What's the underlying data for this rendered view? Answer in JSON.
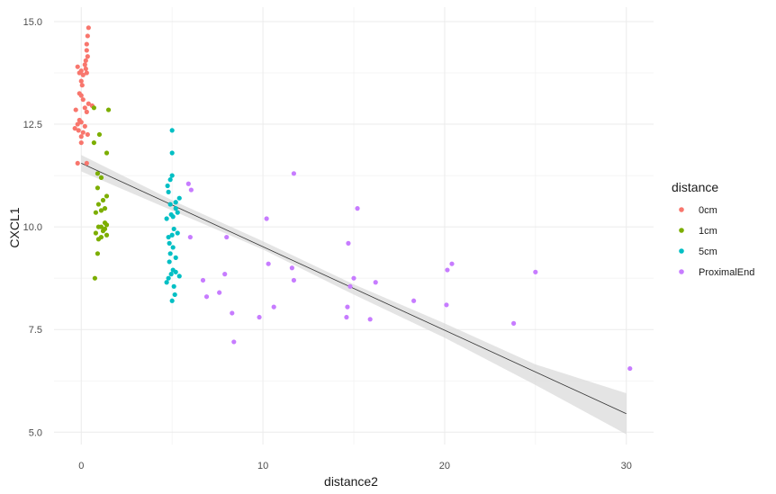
{
  "chart_data": {
    "type": "scatter",
    "title": "",
    "xlabel": "distance2",
    "ylabel": "CXCL1",
    "xlim": [
      -1.5,
      31.5
    ],
    "ylim": [
      4.7,
      15.35
    ],
    "x_ticks": [
      0,
      10,
      20,
      30
    ],
    "x_tick_labels": [
      "0",
      "10",
      "20",
      "30"
    ],
    "y_ticks": [
      5.0,
      7.5,
      10.0,
      12.5,
      15.0
    ],
    "y_tick_labels": [
      "5.0",
      "7.5",
      "10.0",
      "12.5",
      "15.0"
    ],
    "grid": true,
    "legend": {
      "title": "distance",
      "position": "right",
      "entries": [
        {
          "label": "0cm",
          "color": "#F8766D"
        },
        {
          "label": "1cm",
          "color": "#7CAE00"
        },
        {
          "label": "5cm",
          "color": "#00BFC4"
        },
        {
          "label": "ProximalEnd",
          "color": "#C77CFF"
        }
      ]
    },
    "trend": {
      "type": "linear",
      "color": "#333333",
      "band_color": "#d9d9d9",
      "line": [
        [
          0,
          11.55
        ],
        [
          30,
          5.45
        ]
      ],
      "band": [
        {
          "x": 0,
          "low": 11.35,
          "high": 11.75
        },
        {
          "x": 5,
          "low": 10.4,
          "high": 10.65
        },
        {
          "x": 10,
          "low": 9.45,
          "high": 9.65
        },
        {
          "x": 15,
          "low": 8.35,
          "high": 8.6
        },
        {
          "x": 20,
          "low": 7.3,
          "high": 7.65
        },
        {
          "x": 25,
          "low": 6.15,
          "high": 6.65
        },
        {
          "x": 30,
          "low": 4.95,
          "high": 5.95
        }
      ]
    },
    "series": [
      {
        "name": "0cm",
        "color": "#F8766D",
        "points": [
          [
            0.4,
            14.85
          ],
          [
            0.35,
            14.65
          ],
          [
            0.3,
            14.45
          ],
          [
            0.3,
            14.3
          ],
          [
            0.35,
            14.15
          ],
          [
            0.25,
            14.05
          ],
          [
            0.2,
            13.95
          ],
          [
            -0.2,
            13.9
          ],
          [
            0.25,
            13.85
          ],
          [
            0.0,
            13.8
          ],
          [
            -0.1,
            13.75
          ],
          [
            0.3,
            13.75
          ],
          [
            0.1,
            13.7
          ],
          [
            0.0,
            13.55
          ],
          [
            0.05,
            13.45
          ],
          [
            -0.1,
            13.25
          ],
          [
            0.0,
            13.2
          ],
          [
            0.1,
            13.1
          ],
          [
            0.4,
            13.0
          ],
          [
            0.6,
            12.95
          ],
          [
            0.2,
            12.9
          ],
          [
            -0.3,
            12.85
          ],
          [
            0.3,
            12.8
          ],
          [
            -0.1,
            12.6
          ],
          [
            0.0,
            12.55
          ],
          [
            -0.2,
            12.5
          ],
          [
            0.2,
            12.45
          ],
          [
            -0.35,
            12.4
          ],
          [
            -0.15,
            12.35
          ],
          [
            0.1,
            12.3
          ],
          [
            0.35,
            12.25
          ],
          [
            0.0,
            12.2
          ],
          [
            0.0,
            12.05
          ],
          [
            0.3,
            11.55
          ],
          [
            -0.2,
            11.55
          ]
        ]
      },
      {
        "name": "1cm",
        "color": "#7CAE00",
        "points": [
          [
            1.5,
            12.85
          ],
          [
            0.7,
            12.9
          ],
          [
            1.0,
            12.25
          ],
          [
            0.7,
            12.05
          ],
          [
            1.4,
            11.8
          ],
          [
            0.9,
            11.3
          ],
          [
            1.1,
            11.2
          ],
          [
            0.9,
            10.95
          ],
          [
            1.4,
            10.75
          ],
          [
            1.2,
            10.65
          ],
          [
            0.95,
            10.55
          ],
          [
            1.3,
            10.45
          ],
          [
            0.8,
            10.35
          ],
          [
            1.1,
            10.4
          ],
          [
            1.3,
            10.1
          ],
          [
            1.4,
            10.05
          ],
          [
            0.95,
            10.0
          ],
          [
            1.1,
            10.0
          ],
          [
            1.3,
            9.95
          ],
          [
            1.2,
            9.9
          ],
          [
            0.8,
            9.85
          ],
          [
            1.4,
            9.8
          ],
          [
            1.1,
            9.75
          ],
          [
            0.95,
            9.7
          ],
          [
            0.9,
            9.35
          ],
          [
            0.75,
            8.75
          ]
        ]
      },
      {
        "name": "5cm",
        "color": "#00BFC4",
        "points": [
          [
            5.0,
            12.35
          ],
          [
            5.0,
            11.8
          ],
          [
            5.0,
            11.25
          ],
          [
            4.9,
            11.15
          ],
          [
            4.75,
            11.0
          ],
          [
            4.8,
            10.85
          ],
          [
            5.4,
            10.7
          ],
          [
            5.2,
            10.6
          ],
          [
            4.9,
            10.55
          ],
          [
            5.2,
            10.45
          ],
          [
            5.3,
            10.35
          ],
          [
            4.95,
            10.3
          ],
          [
            5.05,
            10.25
          ],
          [
            4.7,
            10.2
          ],
          [
            5.1,
            9.95
          ],
          [
            5.3,
            9.85
          ],
          [
            5.0,
            9.8
          ],
          [
            4.8,
            9.75
          ],
          [
            4.85,
            9.6
          ],
          [
            5.05,
            9.5
          ],
          [
            4.9,
            9.35
          ],
          [
            5.2,
            9.25
          ],
          [
            4.85,
            9.15
          ],
          [
            5.05,
            8.95
          ],
          [
            5.2,
            8.9
          ],
          [
            4.95,
            8.85
          ],
          [
            5.4,
            8.8
          ],
          [
            4.8,
            8.75
          ],
          [
            4.7,
            8.65
          ],
          [
            5.1,
            8.55
          ],
          [
            5.15,
            8.35
          ],
          [
            5.0,
            8.2
          ]
        ]
      },
      {
        "name": "ProximalEnd",
        "color": "#C77CFF",
        "points": [
          [
            11.7,
            11.3
          ],
          [
            5.9,
            11.05
          ],
          [
            6.05,
            10.9
          ],
          [
            15.2,
            10.45
          ],
          [
            10.2,
            10.2
          ],
          [
            6.0,
            9.75
          ],
          [
            8.0,
            9.75
          ],
          [
            14.7,
            9.6
          ],
          [
            20.4,
            9.1
          ],
          [
            10.3,
            9.1
          ],
          [
            20.15,
            8.95
          ],
          [
            11.6,
            9.0
          ],
          [
            25.0,
            8.9
          ],
          [
            7.9,
            8.85
          ],
          [
            15.0,
            8.75
          ],
          [
            11.7,
            8.7
          ],
          [
            16.2,
            8.65
          ],
          [
            6.7,
            8.7
          ],
          [
            14.8,
            8.55
          ],
          [
            7.6,
            8.4
          ],
          [
            6.9,
            8.3
          ],
          [
            18.3,
            8.2
          ],
          [
            20.1,
            8.1
          ],
          [
            10.6,
            8.05
          ],
          [
            14.65,
            8.05
          ],
          [
            8.3,
            7.9
          ],
          [
            9.8,
            7.8
          ],
          [
            14.6,
            7.8
          ],
          [
            15.9,
            7.75
          ],
          [
            23.8,
            7.65
          ],
          [
            8.4,
            7.2
          ],
          [
            30.2,
            6.55
          ]
        ]
      }
    ]
  }
}
